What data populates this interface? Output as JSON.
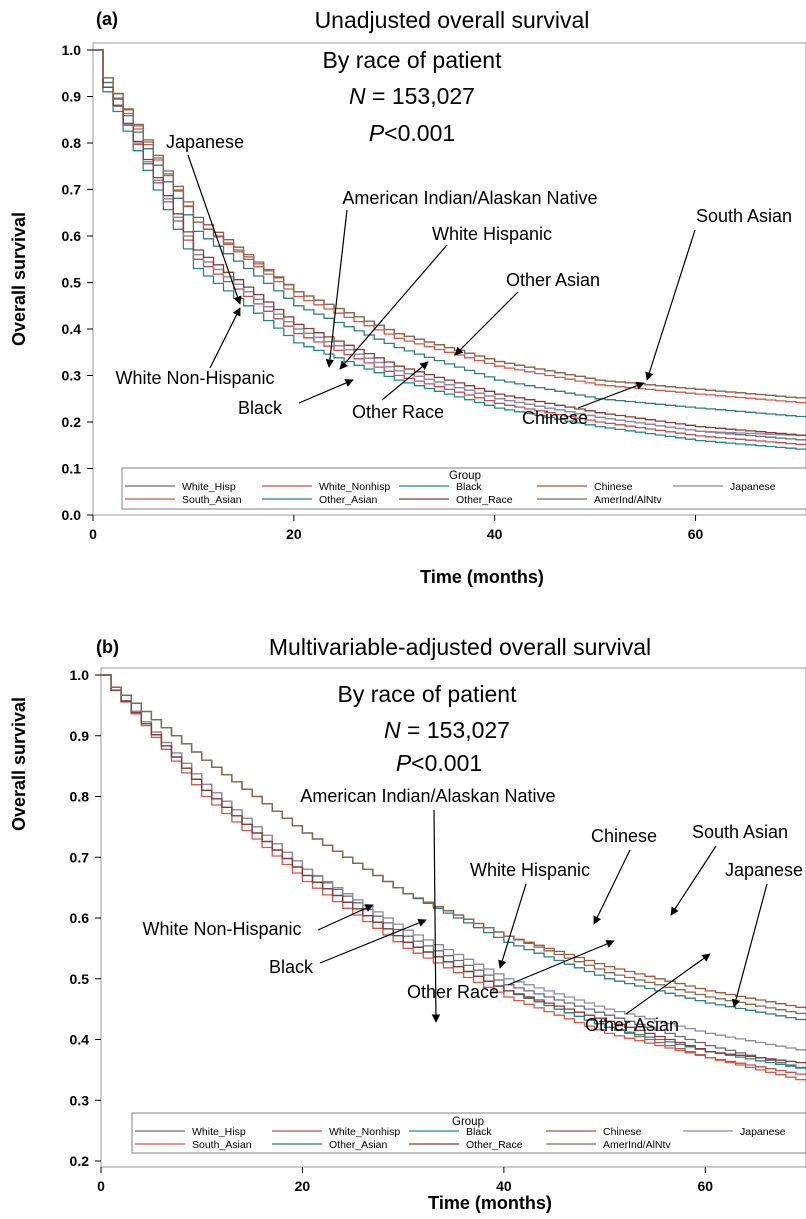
{
  "colors": {
    "White_Hisp": "#6a6a78",
    "White_Nonhisp": "#c0504d",
    "Black": "#1e8a8c",
    "Chinese": "#9b5a3c",
    "Japanese": "#8a8aa8",
    "South_Asian": "#d0584c",
    "Other_Asian": "#2f7e80",
    "Other_Race": "#8b3a2e",
    "AmerInd/AlNtv": "#8a6850"
  },
  "chart_data": [
    {
      "panel": "(a)",
      "type": "line",
      "title": "Unadjusted overall survival",
      "subtitle_lines": [
        "By race of patient",
        "N = 153,027",
        "P<0.001"
      ],
      "xlabel": "Time (months)",
      "ylabel": "Overall survival",
      "xlim": [
        0,
        71
      ],
      "ylim": [
        0,
        1.0
      ],
      "xticks": [
        "0",
        "20",
        "40",
        "60"
      ],
      "yticks": [
        "0.0",
        "0.1",
        "0.2",
        "0.3",
        "0.4",
        "0.5",
        "0.6",
        "0.7",
        "0.8",
        "0.9",
        "1.0"
      ],
      "legend": {
        "title": "Group",
        "placement": "bottom inside",
        "entries": [
          "White_Hisp",
          "White_Nonhisp",
          "Black",
          "Chinese",
          "Japanese",
          "South_Asian",
          "Other_Asian",
          "Other_Race",
          "AmerInd/AlNtv"
        ]
      },
      "series": [
        {
          "name": "White_Hisp",
          "x": [
            0,
            1,
            10,
            20,
            30,
            40,
            50,
            60,
            71
          ],
          "y": [
            1.0,
            0.92,
            0.56,
            0.4,
            0.31,
            0.25,
            0.21,
            0.18,
            0.16
          ]
        },
        {
          "name": "White_Nonhisp",
          "x": [
            0,
            1,
            10,
            20,
            30,
            40,
            50,
            60,
            71
          ],
          "y": [
            1.0,
            0.92,
            0.55,
            0.39,
            0.3,
            0.24,
            0.2,
            0.17,
            0.15
          ]
        },
        {
          "name": "Black",
          "x": [
            0,
            1,
            10,
            20,
            30,
            40,
            50,
            60,
            71
          ],
          "y": [
            1.0,
            0.91,
            0.53,
            0.37,
            0.29,
            0.23,
            0.19,
            0.16,
            0.14
          ]
        },
        {
          "name": "Chinese",
          "x": [
            0,
            1,
            10,
            20,
            30,
            40,
            50,
            60,
            71
          ],
          "y": [
            1.0,
            0.94,
            0.64,
            0.48,
            0.39,
            0.33,
            0.29,
            0.27,
            0.25
          ]
        },
        {
          "name": "Japanese",
          "x": [
            0,
            1,
            10,
            20,
            30,
            40,
            50,
            60,
            71
          ],
          "y": [
            1.0,
            0.92,
            0.56,
            0.4,
            0.31,
            0.25,
            0.21,
            0.18,
            0.17
          ]
        },
        {
          "name": "South_Asian",
          "x": [
            0,
            1,
            10,
            20,
            30,
            40,
            50,
            60,
            71
          ],
          "y": [
            1.0,
            0.93,
            0.63,
            0.47,
            0.38,
            0.32,
            0.28,
            0.26,
            0.24
          ]
        },
        {
          "name": "Other_Asian",
          "x": [
            0,
            1,
            10,
            20,
            30,
            40,
            50,
            60,
            71
          ],
          "y": [
            1.0,
            0.93,
            0.61,
            0.45,
            0.36,
            0.29,
            0.25,
            0.23,
            0.21
          ]
        },
        {
          "name": "Other_Race",
          "x": [
            0,
            1,
            10,
            20,
            30,
            40,
            50,
            60,
            71
          ],
          "y": [
            1.0,
            0.92,
            0.57,
            0.41,
            0.32,
            0.26,
            0.22,
            0.19,
            0.17
          ]
        },
        {
          "name": "AmerInd/AlNtv",
          "x": [
            0,
            1,
            10,
            20,
            30,
            40,
            50,
            60,
            71
          ],
          "y": [
            1.0,
            0.94,
            0.63,
            0.48,
            0.39,
            0.33,
            0.29,
            0.27,
            0.25
          ]
        }
      ],
      "annotations": [
        "Japanese",
        "American Indian/Alaskan Native",
        "White Hispanic",
        "South Asian",
        "Other Asian",
        "White Non-Hispanic",
        "Black",
        "Other Race",
        "Chinese"
      ]
    },
    {
      "panel": "(b)",
      "type": "line",
      "title": "Multivariable-adjusted overall survival",
      "subtitle_lines": [
        "By race of patient",
        "N = 153,027",
        "P<0.001"
      ],
      "xlabel": "Time (months)",
      "ylabel": "Overall survival",
      "xlim": [
        0,
        70
      ],
      "ylim": [
        0.2,
        1.0
      ],
      "xticks": [
        "0",
        "20",
        "40",
        "60"
      ],
      "yticks": [
        "0.2",
        "0.3",
        "0.4",
        "0.5",
        "0.6",
        "0.7",
        "0.8",
        "0.9",
        "1.0"
      ],
      "legend": {
        "title": "Group",
        "placement": "bottom inside",
        "entries": [
          "White_Hisp",
          "White_Nonhisp",
          "Black",
          "Chinese",
          "Japanese",
          "South_Asian",
          "Other_Asian",
          "Other_Race",
          "AmerInd/AlNtv"
        ]
      },
      "series": [
        {
          "name": "White_Hisp",
          "x": [
            0,
            1,
            10,
            20,
            30,
            40,
            50,
            60,
            70
          ],
          "y": [
            1.0,
            0.975,
            0.82,
            0.68,
            0.57,
            0.49,
            0.44,
            0.39,
            0.35
          ]
        },
        {
          "name": "White_Nonhisp",
          "x": [
            0,
            1,
            10,
            20,
            30,
            40,
            50,
            60,
            70
          ],
          "y": [
            1.0,
            0.975,
            0.81,
            0.67,
            0.56,
            0.48,
            0.42,
            0.37,
            0.34
          ]
        },
        {
          "name": "Black",
          "x": [
            0,
            1,
            10,
            20,
            30,
            40,
            50,
            60,
            70
          ],
          "y": [
            1.0,
            0.975,
            0.81,
            0.67,
            0.56,
            0.48,
            0.42,
            0.38,
            0.35
          ]
        },
        {
          "name": "Chinese",
          "x": [
            0,
            1,
            10,
            20,
            30,
            40,
            50,
            60,
            70
          ],
          "y": [
            1.0,
            0.98,
            0.86,
            0.74,
            0.64,
            0.57,
            0.52,
            0.48,
            0.45
          ]
        },
        {
          "name": "Japanese",
          "x": [
            0,
            1,
            10,
            20,
            30,
            40,
            50,
            60,
            70
          ],
          "y": [
            1.0,
            0.975,
            0.82,
            0.68,
            0.58,
            0.5,
            0.45,
            0.41,
            0.38
          ]
        },
        {
          "name": "South_Asian",
          "x": [
            0,
            1,
            10,
            20,
            30,
            40,
            50,
            60,
            70
          ],
          "y": [
            1.0,
            0.975,
            0.8,
            0.66,
            0.55,
            0.47,
            0.41,
            0.37,
            0.33
          ]
        },
        {
          "name": "Other_Asian",
          "x": [
            0,
            1,
            10,
            20,
            30,
            40,
            50,
            60,
            70
          ],
          "y": [
            1.0,
            0.98,
            0.86,
            0.74,
            0.64,
            0.56,
            0.5,
            0.46,
            0.43
          ]
        },
        {
          "name": "Other_Race",
          "x": [
            0,
            1,
            10,
            20,
            30,
            40,
            50,
            60,
            70
          ],
          "y": [
            1.0,
            0.975,
            0.81,
            0.67,
            0.56,
            0.48,
            0.43,
            0.38,
            0.36
          ]
        },
        {
          "name": "AmerInd/AlNtv",
          "x": [
            0,
            1,
            10,
            20,
            30,
            40,
            50,
            60,
            70
          ],
          "y": [
            1.0,
            0.98,
            0.86,
            0.74,
            0.64,
            0.57,
            0.51,
            0.47,
            0.44
          ]
        }
      ],
      "annotations": [
        "American Indian/Alaskan Native",
        "Chinese",
        "South Asian",
        "White Hispanic",
        "Japanese",
        "White Non-Hispanic",
        "Black",
        "Other Race",
        "Other Asian"
      ]
    }
  ]
}
